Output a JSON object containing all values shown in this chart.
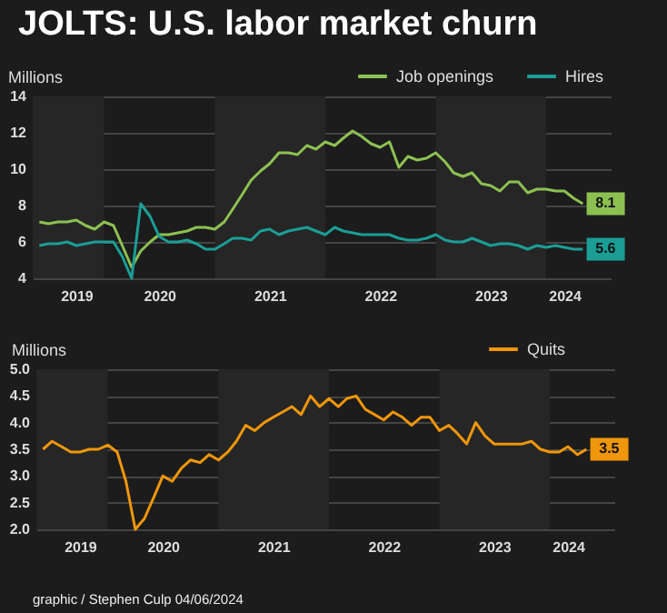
{
  "chart_data": [
    {
      "type": "line",
      "title": "JOLTS: U.S. labor market churn",
      "ylabel": "Millions",
      "x": [
        "2019-06",
        "2019-07",
        "2019-08",
        "2019-09",
        "2019-10",
        "2019-11",
        "2019-12",
        "2020-01",
        "2020-02",
        "2020-03",
        "2020-04",
        "2020-05",
        "2020-06",
        "2020-07",
        "2020-08",
        "2020-09",
        "2020-10",
        "2020-11",
        "2020-12",
        "2021-01",
        "2021-02",
        "2021-03",
        "2021-04",
        "2021-05",
        "2021-06",
        "2021-07",
        "2021-08",
        "2021-09",
        "2021-10",
        "2021-11",
        "2021-12",
        "2022-01",
        "2022-02",
        "2022-03",
        "2022-04",
        "2022-05",
        "2022-06",
        "2022-07",
        "2022-08",
        "2022-09",
        "2022-10",
        "2022-11",
        "2022-12",
        "2023-01",
        "2023-02",
        "2023-03",
        "2023-04",
        "2023-05",
        "2023-06",
        "2023-07",
        "2023-08",
        "2023-09",
        "2023-10",
        "2023-11",
        "2023-12",
        "2024-01",
        "2024-02",
        "2024-03",
        "2024-04",
        "2024-05"
      ],
      "series": [
        {
          "name": "Job openings",
          "color": "#8cc152",
          "values": [
            7.1,
            7.0,
            7.1,
            7.1,
            7.2,
            6.9,
            6.7,
            7.1,
            6.9,
            5.8,
            4.6,
            5.5,
            6.0,
            6.4,
            6.4,
            6.5,
            6.6,
            6.8,
            6.8,
            6.7,
            7.1,
            7.8,
            8.6,
            9.4,
            9.9,
            10.3,
            10.9,
            10.9,
            10.8,
            11.3,
            11.1,
            11.5,
            11.3,
            11.7,
            12.1,
            11.8,
            11.4,
            11.2,
            11.5,
            10.1,
            10.7,
            10.5,
            10.6,
            10.9,
            10.4,
            9.8,
            9.6,
            9.8,
            9.2,
            9.1,
            8.8,
            9.3,
            9.3,
            8.7,
            8.9,
            8.9,
            8.8,
            8.8,
            8.4,
            8.1
          ],
          "value_labels": [
            null,
            null,
            null,
            null,
            null,
            null,
            null,
            null,
            null,
            null,
            null,
            null,
            null,
            null,
            null,
            null,
            null,
            null,
            null,
            null,
            null,
            null,
            null,
            null,
            null,
            null,
            null,
            null,
            null,
            null,
            null,
            null,
            null,
            null,
            null,
            null,
            null,
            null,
            null,
            null,
            null,
            null,
            null,
            null,
            null,
            null,
            null,
            null,
            null,
            null,
            null,
            null,
            null,
            null,
            null,
            null,
            null,
            null,
            null,
            "8.1"
          ]
        },
        {
          "name": "Hires",
          "color": "#1a9e96",
          "values": [
            5.8,
            5.9,
            5.9,
            6.0,
            5.8,
            5.9,
            6.0,
            6.0,
            6.0,
            5.2,
            4.0,
            8.1,
            7.4,
            6.3,
            6.0,
            6.0,
            6.1,
            5.9,
            5.6,
            5.6,
            5.9,
            6.2,
            6.2,
            6.1,
            6.6,
            6.7,
            6.4,
            6.6,
            6.7,
            6.8,
            6.6,
            6.4,
            6.8,
            6.6,
            6.5,
            6.4,
            6.4,
            6.4,
            6.4,
            6.2,
            6.1,
            6.1,
            6.2,
            6.4,
            6.1,
            6.0,
            6.0,
            6.2,
            6.0,
            5.8,
            5.9,
            5.9,
            5.8,
            5.6,
            5.8,
            5.7,
            5.8,
            5.7,
            5.6,
            5.6
          ],
          "value_labels": [
            null,
            null,
            null,
            null,
            null,
            null,
            null,
            null,
            null,
            null,
            null,
            null,
            null,
            null,
            null,
            null,
            null,
            null,
            null,
            null,
            null,
            null,
            null,
            null,
            null,
            null,
            null,
            null,
            null,
            null,
            null,
            null,
            null,
            null,
            null,
            null,
            null,
            null,
            null,
            null,
            null,
            null,
            null,
            null,
            null,
            null,
            null,
            null,
            null,
            null,
            null,
            null,
            null,
            null,
            null,
            null,
            null,
            null,
            null,
            "5.6"
          ]
        }
      ],
      "xlim": [
        "2019-05-10",
        "2024-08-01"
      ],
      "xticks": [
        {
          "value": "2019-10",
          "label": "2019"
        },
        {
          "value": "2020-07",
          "label": "2020"
        },
        {
          "value": "2021-07",
          "label": "2021"
        },
        {
          "value": "2022-07",
          "label": "2022"
        },
        {
          "value": "2023-07",
          "label": "2023"
        },
        {
          "value": "2024-03",
          "label": "2024"
        }
      ],
      "ylim": [
        4,
        14
      ],
      "yticks": [
        4,
        6,
        8,
        10,
        12,
        14
      ],
      "grid": "y",
      "legend": "top right",
      "bands": [
        {
          "axis": "x",
          "from": "2019-05-10",
          "to": "2020-01",
          "color": "#262626"
        },
        {
          "axis": "x",
          "from": "2021-01",
          "to": "2022-01",
          "color": "#262626"
        },
        {
          "axis": "x",
          "from": "2023-01",
          "to": "2024-01",
          "color": "#262626"
        }
      ]
    },
    {
      "type": "line",
      "ylabel": "Millions",
      "x": [
        "2019-06",
        "2019-07",
        "2019-08",
        "2019-09",
        "2019-10",
        "2019-11",
        "2019-12",
        "2020-01",
        "2020-02",
        "2020-03",
        "2020-04",
        "2020-05",
        "2020-06",
        "2020-07",
        "2020-08",
        "2020-09",
        "2020-10",
        "2020-11",
        "2020-12",
        "2021-01",
        "2021-02",
        "2021-03",
        "2021-04",
        "2021-05",
        "2021-06",
        "2021-07",
        "2021-08",
        "2021-09",
        "2021-10",
        "2021-11",
        "2021-12",
        "2022-01",
        "2022-02",
        "2022-03",
        "2022-04",
        "2022-05",
        "2022-06",
        "2022-07",
        "2022-08",
        "2022-09",
        "2022-10",
        "2022-11",
        "2022-12",
        "2023-01",
        "2023-02",
        "2023-03",
        "2023-04",
        "2023-05",
        "2023-06",
        "2023-07",
        "2023-08",
        "2023-09",
        "2023-10",
        "2023-11",
        "2023-12",
        "2024-01",
        "2024-02",
        "2024-03",
        "2024-04",
        "2024-05"
      ],
      "series": [
        {
          "name": "Quits",
          "color": "#f0960a",
          "values": [
            3.5,
            3.65,
            3.55,
            3.45,
            3.45,
            3.5,
            3.5,
            3.58,
            3.45,
            2.9,
            2.0,
            2.2,
            2.6,
            3.0,
            2.9,
            3.15,
            3.3,
            3.25,
            3.4,
            3.3,
            3.45,
            3.65,
            3.95,
            3.85,
            4.0,
            4.1,
            4.2,
            4.3,
            4.15,
            4.5,
            4.3,
            4.45,
            4.3,
            4.45,
            4.5,
            4.25,
            4.15,
            4.05,
            4.2,
            4.1,
            3.95,
            4.1,
            4.1,
            3.85,
            3.95,
            3.8,
            3.6,
            4.0,
            3.75,
            3.6,
            3.6,
            3.6,
            3.6,
            3.65,
            3.5,
            3.45,
            3.45,
            3.55,
            3.4,
            3.5
          ],
          "value_labels": [
            null,
            null,
            null,
            null,
            null,
            null,
            null,
            null,
            null,
            null,
            null,
            null,
            null,
            null,
            null,
            null,
            null,
            null,
            null,
            null,
            null,
            null,
            null,
            null,
            null,
            null,
            null,
            null,
            null,
            null,
            null,
            null,
            null,
            null,
            null,
            null,
            null,
            null,
            null,
            null,
            null,
            null,
            null,
            null,
            null,
            null,
            null,
            null,
            null,
            null,
            null,
            null,
            null,
            null,
            null,
            null,
            null,
            null,
            null,
            "3.5"
          ]
        }
      ],
      "xlim": [
        "2019-05-10",
        "2024-08-01"
      ],
      "xticks": [
        {
          "value": "2019-10",
          "label": "2019"
        },
        {
          "value": "2020-07",
          "label": "2020"
        },
        {
          "value": "2021-07",
          "label": "2021"
        },
        {
          "value": "2022-07",
          "label": "2022"
        },
        {
          "value": "2023-07",
          "label": "2023"
        },
        {
          "value": "2024-03",
          "label": "2024"
        }
      ],
      "ylim": [
        2,
        5
      ],
      "yticks": [
        {
          "value": 2,
          "label": "2.0"
        },
        {
          "value": 2.5,
          "label": "2.5"
        },
        {
          "value": 3,
          "label": "3.0"
        },
        {
          "value": 3.5,
          "label": "3.5"
        },
        {
          "value": 4,
          "label": "4.0"
        },
        {
          "value": 4.5,
          "label": "4.5"
        },
        {
          "value": 5,
          "label": "5.0"
        }
      ],
      "grid": "y",
      "legend": "top right",
      "bands": [
        {
          "axis": "x",
          "from": "2019-05-10",
          "to": "2020-01",
          "color": "#262626"
        },
        {
          "axis": "x",
          "from": "2021-01",
          "to": "2022-01",
          "color": "#262626"
        },
        {
          "axis": "x",
          "from": "2023-01",
          "to": "2024-01",
          "color": "#262626"
        }
      ],
      "annotations": [
        "graphic / Stephen Culp 04/06/2024"
      ]
    }
  ]
}
